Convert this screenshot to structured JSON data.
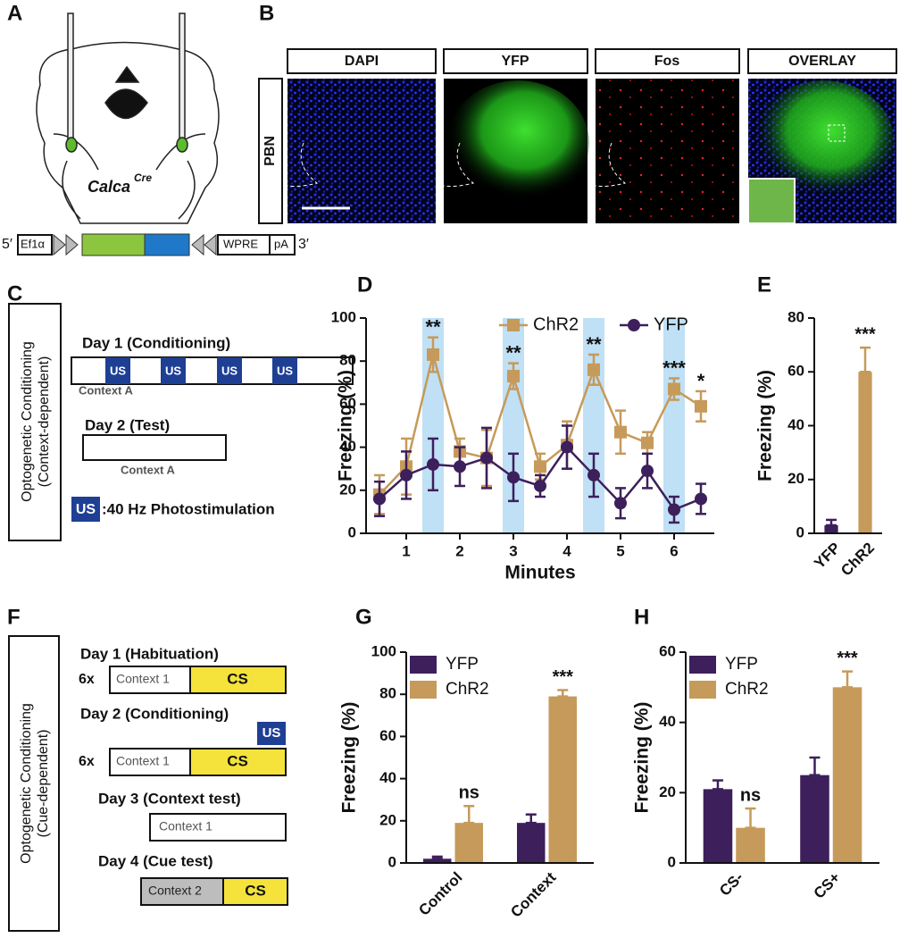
{
  "panel_labels": [
    "A",
    "B",
    "C",
    "D",
    "E",
    "F",
    "G",
    "H"
  ],
  "panel_a": {
    "label": "Calca",
    "superscript": "Cre",
    "construct": [
      "5′",
      "Ef1α",
      "WPRE",
      "pA",
      "3′"
    ]
  },
  "panel_b": {
    "columns": [
      "DAPI",
      "YFP",
      "Fos",
      "OVERLAY"
    ],
    "row": "PBN"
  },
  "panel_c": {
    "side_label": [
      "Optogenetic Conditioning",
      "(Context-dependent)"
    ],
    "day1": "Day 1 (Conditioning)",
    "us": "US",
    "context1": "Context A",
    "day2": "Day 2 (Test)",
    "context2": "Context A",
    "legend_key": "US",
    "legend_text": ":40 Hz Photostimulation"
  },
  "panel_f": {
    "side_label": [
      "Optogenetic Conditioning",
      "(Cue-dependent)"
    ],
    "steps": [
      {
        "title": "Day 1 (Habituation)",
        "repeat": "6x",
        "context": "Context 1",
        "cue": "CS"
      },
      {
        "title": "Day 2 (Conditioning)",
        "us": "US",
        "repeat": "6x",
        "context": "Context 1",
        "cue": "CS"
      },
      {
        "title": "Day 3 (Context test)",
        "context": "Context 1"
      },
      {
        "title": "Day 4 (Cue test)",
        "context": "Context 2",
        "cue": "CS"
      }
    ]
  },
  "chart_data": [
    {
      "type": "line",
      "xlabel": "Minutes",
      "ylabel": "Freezing (%)",
      "x": [
        0.5,
        1,
        1.5,
        2,
        2.5,
        3,
        3.5,
        4,
        4.5,
        5,
        5.5,
        6,
        6.5
      ],
      "xlim": [
        0.25,
        6.75
      ],
      "xticks": [
        1,
        2,
        3,
        4,
        5,
        6
      ],
      "ylim": [
        0,
        100
      ],
      "yticks": [
        0,
        20,
        40,
        60,
        80,
        100
      ],
      "highlight_x": [
        1.5,
        3,
        4.5,
        6
      ],
      "highlight_color": "#bfe0f5",
      "legend": "top",
      "series": [
        {
          "name": "ChR2",
          "color": "#c69a5a",
          "marker": "square",
          "values": [
            18,
            31,
            83,
            38,
            35,
            73,
            31,
            41,
            76,
            47,
            42,
            67,
            59
          ],
          "errors": [
            9,
            13,
            8,
            6,
            13,
            6,
            6,
            11,
            7,
            10,
            5,
            5,
            7
          ],
          "significance": [
            null,
            null,
            "**",
            null,
            null,
            "**",
            null,
            null,
            "**",
            null,
            null,
            "***",
            "*"
          ]
        },
        {
          "name": "YFP",
          "color": "#3d1f5c",
          "marker": "circle",
          "values": [
            16,
            27,
            32,
            31,
            35,
            26,
            22,
            40,
            27,
            14,
            29,
            11,
            16
          ],
          "errors": [
            8,
            11,
            12,
            9,
            14,
            11,
            5,
            10,
            10,
            7,
            8,
            6,
            7
          ]
        }
      ]
    },
    {
      "type": "bar",
      "ylabel": "Freezing (%)",
      "categories": [
        "YFP",
        "ChR2"
      ],
      "values": [
        3,
        60
      ],
      "errors": [
        2,
        9
      ],
      "colors": [
        "#3d1f5c",
        "#c69a5a"
      ],
      "significance": [
        null,
        "***"
      ],
      "ylim": [
        0,
        80
      ],
      "yticks": [
        0,
        20,
        40,
        60,
        80
      ]
    },
    {
      "type": "bar",
      "ylabel": "Freezing (%)",
      "categories": [
        "Control",
        "Context"
      ],
      "legend": "upper left",
      "ylim": [
        0,
        100
      ],
      "yticks": [
        0,
        20,
        40,
        60,
        80,
        100
      ],
      "series": [
        {
          "name": "YFP",
          "color": "#3d1f5c",
          "values": [
            2,
            19
          ],
          "errors": [
            1,
            4
          ]
        },
        {
          "name": "ChR2",
          "color": "#c69a5a",
          "values": [
            19,
            79
          ],
          "errors": [
            8,
            3
          ],
          "significance": [
            "ns",
            "***"
          ]
        }
      ]
    },
    {
      "type": "bar",
      "ylabel": "Freezing (%)",
      "categories": [
        "CS-",
        "CS+"
      ],
      "legend": "upper left",
      "ylim": [
        0,
        60
      ],
      "yticks": [
        0,
        20,
        40,
        60
      ],
      "series": [
        {
          "name": "YFP",
          "color": "#3d1f5c",
          "values": [
            21,
            25
          ],
          "errors": [
            2.5,
            5
          ]
        },
        {
          "name": "ChR2",
          "color": "#c69a5a",
          "values": [
            10,
            50
          ],
          "errors": [
            5.5,
            4.5
          ],
          "significance": [
            "ns",
            "***"
          ]
        }
      ]
    }
  ]
}
